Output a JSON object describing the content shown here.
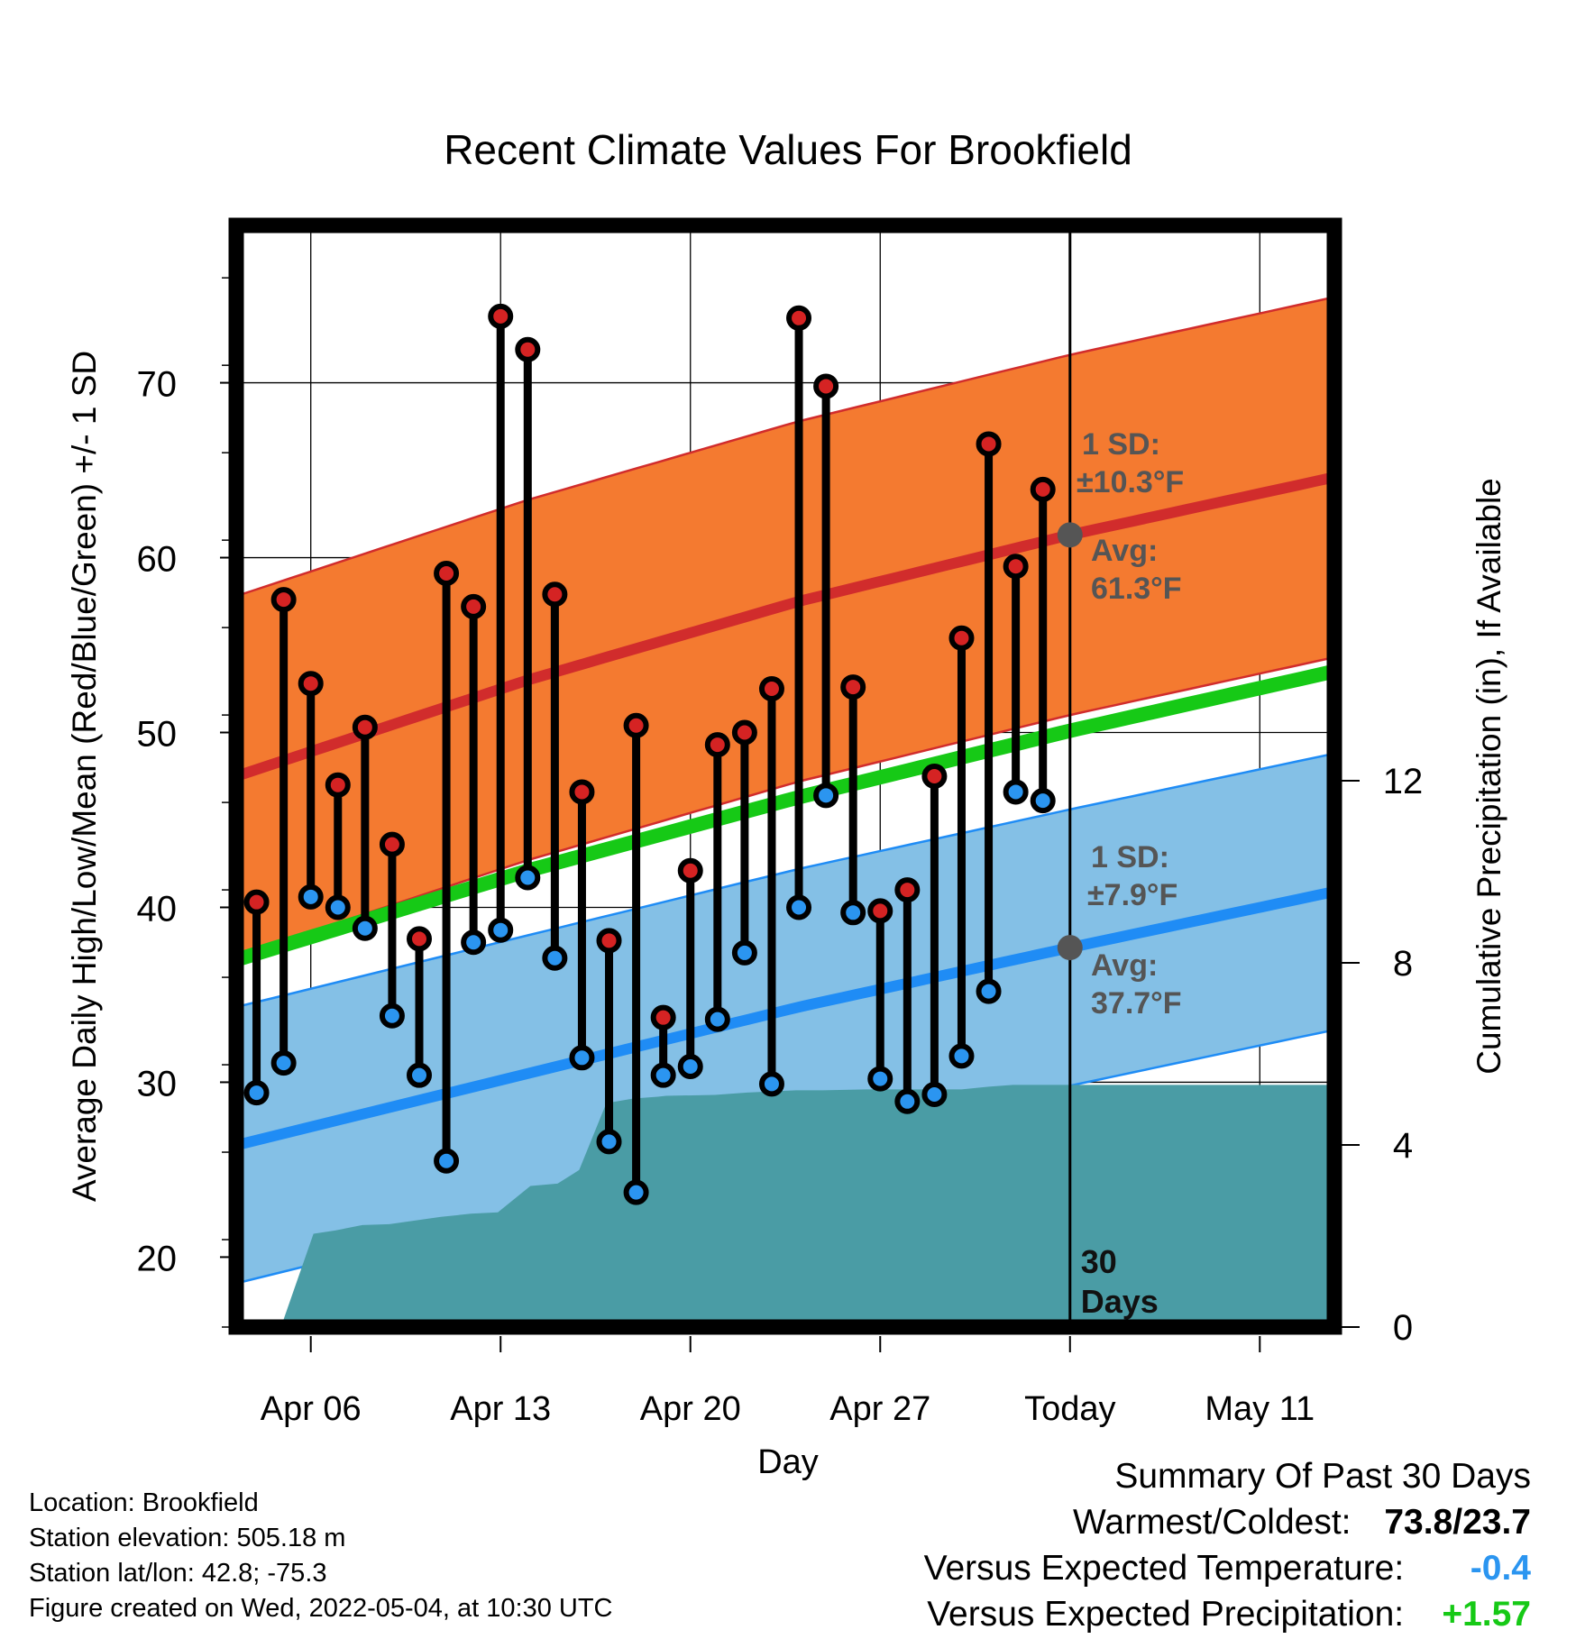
{
  "chart_data": {
    "type": "line",
    "title": "Recent Climate Values For Brookfield",
    "xlabel": "Day",
    "ylabel": "Average Daily High/Low/Mean (Red/Blue/Green) +/- 1 SD",
    "y2label": "Cumulative Precipitation (in), If Available",
    "x_tick_labels": [
      "Apr 06",
      "Apr 13",
      "Apr 20",
      "Apr 27",
      "Today",
      "May 11"
    ],
    "y_ticks": [
      20,
      30,
      40,
      50,
      60,
      70
    ],
    "y2_ticks": [
      0,
      4,
      8,
      12
    ],
    "ylim": [
      16,
      79
    ],
    "y2lim": [
      0,
      24.2
    ],
    "x_range_days_from_today": [
      -30.75,
      9.75
    ],
    "today_marker_label": [
      "30",
      "Days"
    ],
    "observed": {
      "days_from_today": [
        -30,
        -29,
        -28,
        -27,
        -26,
        -25,
        -24,
        -23,
        -22,
        -21,
        -20,
        -19,
        -18,
        -17,
        -16,
        -15,
        -14,
        -13,
        -12,
        -11,
        -10,
        -9,
        -8,
        -7,
        -6,
        -5,
        -4,
        -3,
        -2,
        -1,
        0
      ],
      "high_f": [
        40.3,
        57.6,
        52.8,
        47.0,
        50.3,
        43.6,
        38.2,
        59.1,
        57.2,
        73.8,
        71.9,
        57.9,
        46.6,
        38.1,
        50.4,
        33.7,
        42.1,
        49.3,
        50.0,
        52.5,
        73.7,
        69.8,
        52.6,
        39.8,
        41.0,
        47.5,
        55.4,
        66.5,
        59.5,
        63.9,
        null
      ],
      "low_f": [
        29.4,
        31.1,
        40.6,
        40.0,
        38.8,
        33.8,
        30.4,
        25.5,
        38.0,
        38.7,
        41.7,
        37.1,
        31.4,
        26.6,
        23.7,
        30.4,
        30.9,
        33.6,
        37.4,
        29.9,
        40.0,
        46.4,
        39.7,
        30.2,
        28.9,
        29.3,
        31.5,
        35.2,
        46.6,
        46.1,
        null
      ]
    },
    "normals": {
      "x": [
        -30.75,
        -20,
        -10,
        0,
        9.75
      ],
      "avg_high_f": [
        47.5,
        53.0,
        57.5,
        61.3,
        64.6
      ],
      "avg_low_f": [
        26.4,
        30.5,
        34.3,
        37.7,
        40.9
      ],
      "avg_mean_f": [
        37.0,
        42.1,
        46.3,
        50.1,
        53.5
      ],
      "high_sd_f": 10.3,
      "low_sd_f": 7.9
    },
    "cumulative_precip_in": {
      "x": [
        -30.75,
        -29.1,
        -27.9,
        -27.1,
        -26.1,
        -25.1,
        -23.2,
        -22.1,
        -21.1,
        -19.9,
        -18.9,
        -18.1,
        -17.1,
        -16.1,
        -15.2,
        -14.9,
        -13.1,
        -11.9,
        -10.1,
        -9.1,
        -7.5,
        -4.0,
        -3.0,
        -2.1,
        0,
        9.75
      ],
      "y": [
        null,
        0,
        2.05,
        2.12,
        2.24,
        2.26,
        2.42,
        2.49,
        2.52,
        3.1,
        3.15,
        3.45,
        4.92,
        5.02,
        5.06,
        5.08,
        5.1,
        5.15,
        5.2,
        5.2,
        5.22,
        5.22,
        5.28,
        5.32,
        5.32,
        5.32
      ]
    },
    "annotations": {
      "high_sd": "1 SD:",
      "high_sd_value": "±10.3°F",
      "high_avg": "Avg:",
      "high_avg_value": "61.3°F",
      "low_sd": "1 SD:",
      "low_sd_value": "±7.9°F",
      "low_avg": "Avg:",
      "low_avg_value": "37.7°F"
    },
    "colors": {
      "high_band": "#f47a30",
      "high_line": "#d12c2c",
      "low_band": "#84c0e6",
      "low_line": "#1f8cf5",
      "mean_line": "#16c916",
      "precip_fill": "#4a9ca5",
      "high_marker": "#d52323",
      "low_marker": "#2b95f0",
      "avg_marker": "#555555",
      "annotation_text": "#555555"
    }
  },
  "footer": {
    "location": "Location: Brookfield",
    "elevation": "Station elevation: 505.18 m",
    "latlon": "Station lat/lon: 42.8; -75.3",
    "created": "Figure created on Wed, 2022-05-04, at 10:30 UTC"
  },
  "summary": {
    "title": "Summary Of Past 30 Days",
    "warmest_label": "Warmest/Coldest:",
    "warmest_value": "73.8/23.7",
    "temp_label": "Versus Expected Temperature:",
    "temp_value": "-0.4",
    "temp_color": "#2b95f0",
    "precip_label": "Versus Expected Precipitation:",
    "precip_value": "+1.57",
    "precip_color": "#16c916"
  }
}
